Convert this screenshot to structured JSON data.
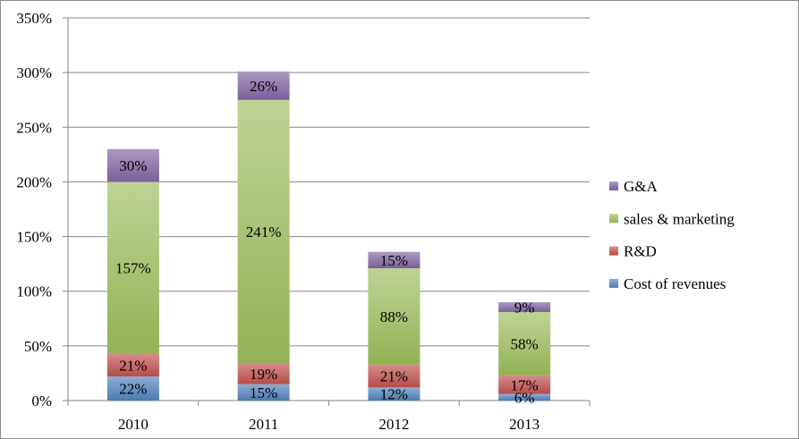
{
  "chart_data": {
    "type": "bar",
    "stacked": true,
    "categories": [
      "2010",
      "2011",
      "2012",
      "2013"
    ],
    "ylim": [
      0,
      350
    ],
    "yticks": [
      0,
      50,
      100,
      150,
      200,
      250,
      300,
      350
    ],
    "ytick_labels": [
      "0%",
      "50%",
      "100%",
      "150%",
      "200%",
      "250%",
      "300%",
      "350%"
    ],
    "grid": true,
    "legend_position": "right",
    "series": [
      {
        "name": "Cost of revenues",
        "values": [
          22,
          15,
          12,
          6
        ],
        "labels": [
          "22%",
          "15%",
          "12%",
          "6%"
        ],
        "color": "#4f81bd"
      },
      {
        "name": "R&D",
        "values": [
          21,
          19,
          21,
          17
        ],
        "labels": [
          "21%",
          "19%",
          "21%",
          "17%"
        ],
        "color": "#c0504d"
      },
      {
        "name": "sales & marketing",
        "values": [
          157,
          241,
          88,
          58
        ],
        "labels": [
          "157%",
          "241%",
          "88%",
          "58%"
        ],
        "color": "#9bbb59"
      },
      {
        "name": "G&A",
        "values": [
          30,
          26,
          15,
          9
        ],
        "labels": [
          "30%",
          "26%",
          "15%",
          "9%"
        ],
        "color": "#8064a2"
      }
    ]
  }
}
